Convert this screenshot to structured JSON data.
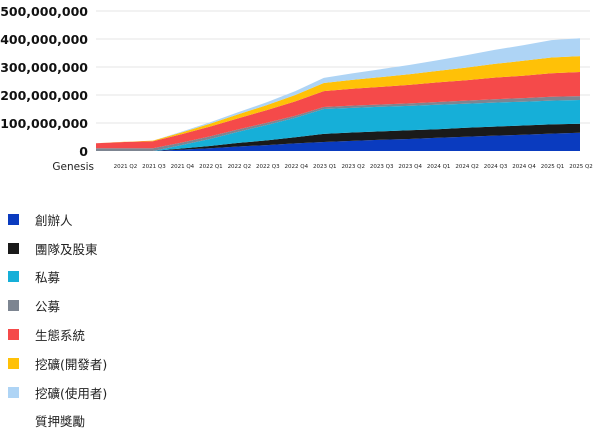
{
  "chart_data": {
    "type": "area",
    "stacked": true,
    "title": "",
    "xlabel": "",
    "ylabel": "",
    "ylim": [
      0,
      500000000
    ],
    "yticks": [
      0,
      100000000,
      200000000,
      300000000,
      400000000,
      500000000
    ],
    "ytick_labels": [
      "0",
      "100,000,000",
      "200,000,000",
      "300,000,000",
      "400,000,000",
      "500,000,000"
    ],
    "grid": true,
    "legend_position": "bottom",
    "categories": [
      "Genesis",
      "2021 Q2",
      "2021 Q3",
      "2021 Q4",
      "2022 Q1",
      "2022 Q2",
      "2022 Q3",
      "2022 Q4",
      "2023 Q1",
      "2023 Q2",
      "2023 Q3",
      "2023 Q4",
      "2024 Q1",
      "2024 Q2",
      "2024 Q3",
      "2024 Q4",
      "2025 Q1",
      "2025 Q2"
    ],
    "series": [
      {
        "name": "創辦人",
        "color": "#0a3bbf",
        "values": [
          0,
          0,
          0,
          5000000,
          10000000,
          16000000,
          21000000,
          27000000,
          32000000,
          36000000,
          40000000,
          43000000,
          47000000,
          51000000,
          55000000,
          58000000,
          62000000,
          65000000
        ]
      },
      {
        "name": "團隊及股東",
        "color": "#1a1a1a",
        "values": [
          0,
          0,
          0,
          4000000,
          8000000,
          13000000,
          17000000,
          22000000,
          29000000,
          30000000,
          30000000,
          31000000,
          31000000,
          32000000,
          32000000,
          33000000,
          33000000,
          32000000
        ]
      },
      {
        "name": "私募",
        "color": "#16afd8",
        "values": [
          0,
          0,
          0,
          12000000,
          25000000,
          40000000,
          55000000,
          70000000,
          89000000,
          88000000,
          88000000,
          87000000,
          87000000,
          86000000,
          86000000,
          85000000,
          85000000,
          85000000
        ]
      },
      {
        "name": "公募",
        "color": "#7d8591",
        "values": [
          10000000,
          10000000,
          10000000,
          9000000,
          9000000,
          8000000,
          8000000,
          7000000,
          7000000,
          8000000,
          8000000,
          9000000,
          10000000,
          11000000,
          12000000,
          13000000,
          14000000,
          14000000
        ]
      },
      {
        "name": "生態系統",
        "color": "#f54a4a",
        "values": [
          18000000,
          22000000,
          25000000,
          30000000,
          35000000,
          40000000,
          45000000,
          51000000,
          57000000,
          60000000,
          63000000,
          66000000,
          70000000,
          73000000,
          77000000,
          80000000,
          84000000,
          86000000
        ]
      },
      {
        "name": "挖礦(開發者)",
        "color": "#ffc107",
        "values": [
          0,
          1000000,
          2000000,
          6000000,
          10000000,
          14000000,
          18000000,
          23000000,
          29000000,
          32000000,
          35000000,
          38000000,
          41000000,
          45000000,
          49000000,
          53000000,
          56000000,
          57000000
        ]
      },
      {
        "name": "挖礦(使用者)",
        "color": "#aed4f5",
        "values": [
          0,
          0,
          0,
          3000000,
          5000000,
          8000000,
          10000000,
          14000000,
          18000000,
          23000000,
          28000000,
          33000000,
          38000000,
          44000000,
          50000000,
          56000000,
          62000000,
          64000000
        ]
      },
      {
        "name": "質押獎勵",
        "color": "#ffffff",
        "values": [
          0,
          0,
          0,
          0,
          0,
          0,
          0,
          0,
          0,
          0,
          0,
          0,
          0,
          0,
          0,
          0,
          0,
          0
        ]
      }
    ]
  }
}
